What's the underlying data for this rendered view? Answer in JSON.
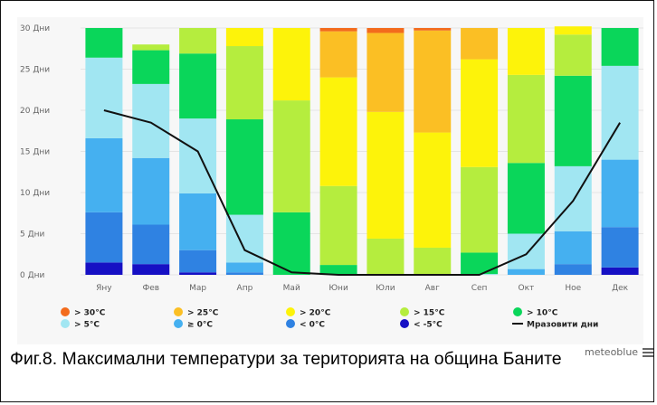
{
  "caption": "Фиг.8. Максимални температури за територията на община Баните",
  "brand": "meteoblue",
  "menu_icon": "hamburger-menu-icon",
  "legend": [
    {
      "label": "> 30°C",
      "color": "#f36b1c",
      "kind": "dot"
    },
    {
      "label": "> 25°C",
      "color": "#fbbf24",
      "kind": "dot"
    },
    {
      "label": "> 20°C",
      "color": "#fdf30a",
      "kind": "dot"
    },
    {
      "label": "> 15°C",
      "color": "#b5ed3e",
      "kind": "dot"
    },
    {
      "label": "> 10°C",
      "color": "#0ad65a",
      "kind": "dot"
    },
    {
      "label": "> 5°C",
      "color": "#a1e6f2",
      "kind": "dot"
    },
    {
      "label": "≥ 0°C",
      "color": "#45b0f0",
      "kind": "dot"
    },
    {
      "label": "< 0°C",
      "color": "#2f82e2",
      "kind": "dot"
    },
    {
      "label": "< -5°C",
      "color": "#1610c4",
      "kind": "dot"
    },
    {
      "label": "Мразовити дни",
      "color": "#111111",
      "kind": "line"
    }
  ],
  "chart_data": {
    "type": "bar",
    "stacked": true,
    "categories": [
      "Яну",
      "Фев",
      "Мар",
      "Апр",
      "Май",
      "Юни",
      "Юли",
      "Авг",
      "Сеп",
      "Окт",
      "Ное",
      "Дек"
    ],
    "ylim": [
      0,
      30
    ],
    "yticks": [
      0,
      5,
      10,
      15,
      20,
      25,
      30
    ],
    "ytick_labels": [
      "0 Дни",
      "5 Дни",
      "10 Дни",
      "15 Дни",
      "20 Дни",
      "25 Дни",
      "30 Дни"
    ],
    "grid": true,
    "legend_position": "bottom",
    "series": [
      {
        "name": "< -5°C",
        "color": "#1610c4",
        "values": [
          1.5,
          1.3,
          0.3,
          0,
          0,
          0,
          0,
          0,
          0,
          0,
          0,
          0.9
        ]
      },
      {
        "name": "< 0°C",
        "color": "#2f82e2",
        "values": [
          6.1,
          4.8,
          2.7,
          0.3,
          0,
          0,
          0,
          0,
          0,
          0,
          1.3,
          4.9
        ]
      },
      {
        "name": "≥ 0°C",
        "color": "#45b0f0",
        "values": [
          9.0,
          8.1,
          6.9,
          1.2,
          0,
          0,
          0,
          0,
          0,
          0.7,
          4.0,
          8.2
        ]
      },
      {
        "name": "> 5°C",
        "color": "#a1e6f2",
        "values": [
          9.8,
          9.0,
          9.1,
          5.8,
          0,
          0,
          0,
          0,
          0.1,
          4.3,
          7.9,
          11.4
        ]
      },
      {
        "name": "> 10°C",
        "color": "#0ad65a",
        "values": [
          3.6,
          4.1,
          7.9,
          11.6,
          7.6,
          1.2,
          0.1,
          0,
          2.6,
          8.6,
          11.0,
          4.6
        ]
      },
      {
        "name": "> 15°C",
        "color": "#b5ed3e",
        "values": [
          0,
          0.7,
          3.1,
          8.9,
          13.6,
          9.6,
          4.3,
          3.3,
          10.4,
          10.7,
          5.0,
          0
        ]
      },
      {
        "name": "> 20°C",
        "color": "#fdf30a",
        "values": [
          0,
          0,
          0,
          2.2,
          8.8,
          13.2,
          15.4,
          14.0,
          13.1,
          5.7,
          1.0,
          0
        ]
      },
      {
        "name": "> 25°C",
        "color": "#fbbf24",
        "values": [
          0,
          0,
          0,
          0,
          0,
          5.6,
          9.6,
          12.4,
          3.8,
          0,
          0,
          0
        ]
      },
      {
        "name": "> 30°C",
        "color": "#f36b1c",
        "values": [
          0,
          0,
          0,
          0,
          0,
          0.4,
          0.6,
          0.3,
          0,
          0,
          0,
          0
        ]
      }
    ],
    "line_series": {
      "name": "Мразовити дни",
      "color": "#111111",
      "values": [
        20.0,
        18.5,
        15.0,
        3.0,
        0.3,
        0,
        0,
        0,
        0,
        2.5,
        9.0,
        18.5
      ]
    }
  }
}
